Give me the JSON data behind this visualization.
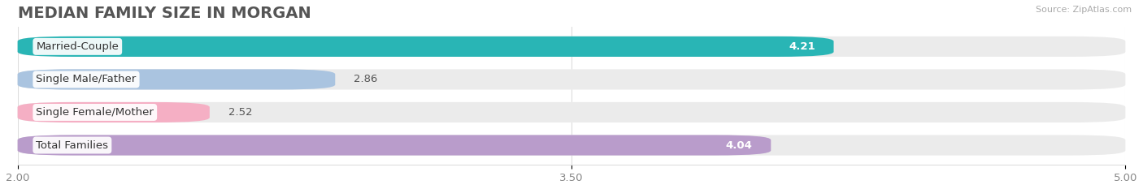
{
  "title": "MEDIAN FAMILY SIZE IN MORGAN",
  "source": "Source: ZipAtlas.com",
  "categories": [
    "Married-Couple",
    "Single Male/Father",
    "Single Female/Mother",
    "Total Families"
  ],
  "values": [
    4.21,
    2.86,
    2.52,
    4.04
  ],
  "bar_colors": [
    "#29b5b5",
    "#aac4e0",
    "#f5afc4",
    "#b99ccb"
  ],
  "xlim": [
    2.0,
    5.0
  ],
  "xticks": [
    2.0,
    3.5,
    5.0
  ],
  "bar_height": 0.62,
  "background_color": "#ffffff",
  "bar_bg_color": "#ebebeb",
  "title_fontsize": 14,
  "label_fontsize": 9.5,
  "value_fontsize": 9.5,
  "tick_fontsize": 9.5,
  "title_color": "#555555",
  "source_color": "#aaaaaa",
  "tick_color": "#888888",
  "value_color_inside": "#ffffff",
  "value_color_outside": "#555555"
}
